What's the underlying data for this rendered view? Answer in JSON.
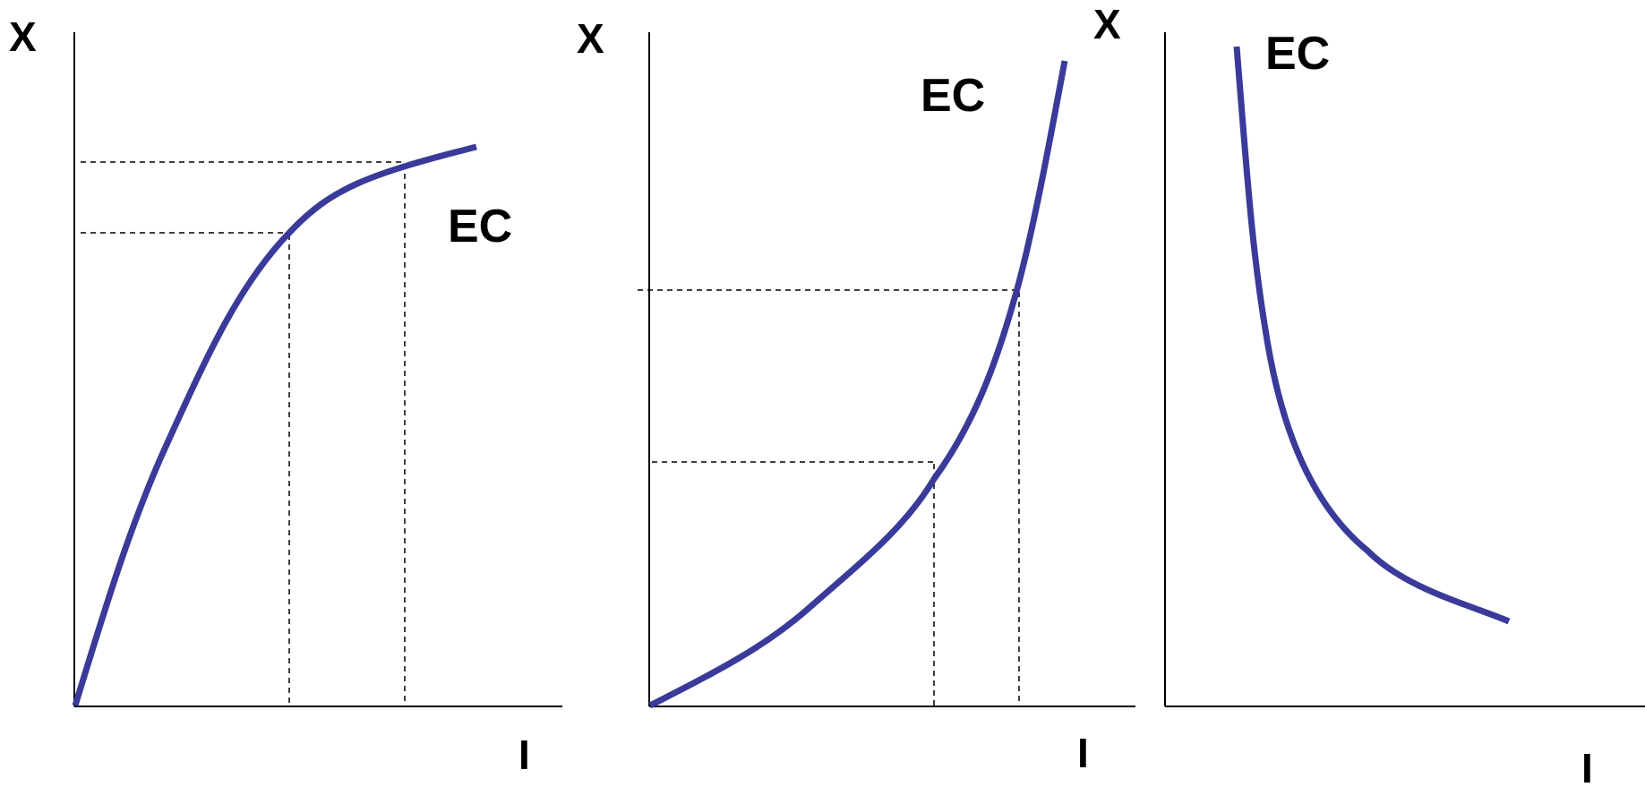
{
  "panels": [
    {
      "y_label": "X",
      "x_label": "I",
      "curve_label": "EC"
    },
    {
      "y_label": "X",
      "x_label": "I",
      "curve_label": "EC"
    },
    {
      "y_label": "X",
      "x_label": "I",
      "curve_label": "EC"
    }
  ],
  "colors": {
    "curve": "#3a3a9a",
    "axes": "#000000"
  }
}
